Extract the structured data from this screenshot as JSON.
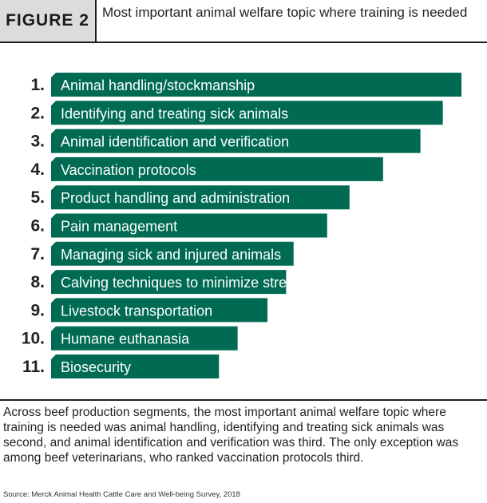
{
  "figure": {
    "label": "FIGURE 2",
    "title": "Most important animal welfare topic where training is needed"
  },
  "chart_data": {
    "type": "bar",
    "orientation": "horizontal",
    "title": "Most important animal welfare topic where training is needed",
    "categories": [
      "Animal handling/stockmanship",
      "Identifying and treating sick animals",
      "Animal identification and verification",
      "Vaccination protocols",
      "Product handling and administration",
      "Pain management",
      "Managing sick and injured animals",
      "Calving techniques to minimize stress",
      "Livestock transportation",
      "Humane euthanasia",
      "Biosecurity"
    ],
    "ranks": [
      "1.",
      "2.",
      "3.",
      "4.",
      "5.",
      "6.",
      "7.",
      "8.",
      "9.",
      "10.",
      "11."
    ],
    "values": [
      11,
      10.5,
      9.9,
      8.9,
      8.0,
      7.4,
      6.5,
      6.3,
      5.8,
      5.0,
      4.5
    ],
    "xlim": [
      0,
      11
    ],
    "bar_color": "#006b52",
    "grid": false,
    "legend": "none"
  },
  "caption": "Across beef production segments, the most important animal welfare topic where training is needed was animal handling, identifying and treating sick animals was second, and animal identification and verification was third. The only exception was among beef veterinarians, who ranked vaccination protocols third.",
  "source": "Source: Merck Animal Health Cattle Care and Well-being Survey, 2018"
}
